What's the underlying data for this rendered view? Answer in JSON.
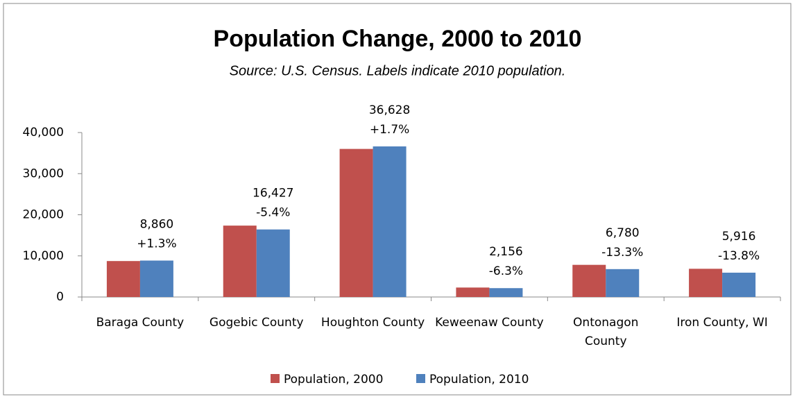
{
  "chart_data": {
    "type": "bar",
    "title": "Population Change, 2000 to 2010",
    "subtitle": "Source:  U.S. Census.  Labels indicate 2010 population.",
    "categories": [
      "Baraga County",
      "Gogebic County",
      "Houghton County",
      "Keweenaw County",
      "Ontonagon County",
      "Iron County, WI"
    ],
    "series": [
      {
        "name": "Population, 2000",
        "color": "#c0504d",
        "values": [
          8746,
          17365,
          36016,
          2301,
          7820,
          6863
        ]
      },
      {
        "name": "Population, 2010",
        "color": "#4f81bd",
        "values": [
          8860,
          16427,
          36628,
          2156,
          6780,
          5916
        ],
        "value_labels": [
          "8,860",
          "16,427",
          "36,628",
          "2,156",
          "6,780",
          "5,916"
        ],
        "changes": [
          {
            "value": 1.3,
            "label": "+1.3%"
          },
          {
            "value": -5.4,
            "label": "-5.4%"
          },
          {
            "value": 1.7,
            "label": "+1.7%"
          },
          {
            "value": -6.3,
            "label": "-6.3%"
          },
          {
            "value": -13.3,
            "label": "-13.3%"
          },
          {
            "value": -13.8,
            "label": "-13.8%"
          }
        ]
      }
    ],
    "ylim": [
      0,
      40000
    ],
    "yticks": [
      0,
      {
        "value": 10000,
        "label": "10,000"
      },
      {
        "value": 20000,
        "label": "20,000"
      },
      {
        "value": 30000,
        "label": "30,000"
      },
      {
        "value": 40000,
        "label": "40,000"
      }
    ],
    "legend": "bottom",
    "grid": false
  }
}
